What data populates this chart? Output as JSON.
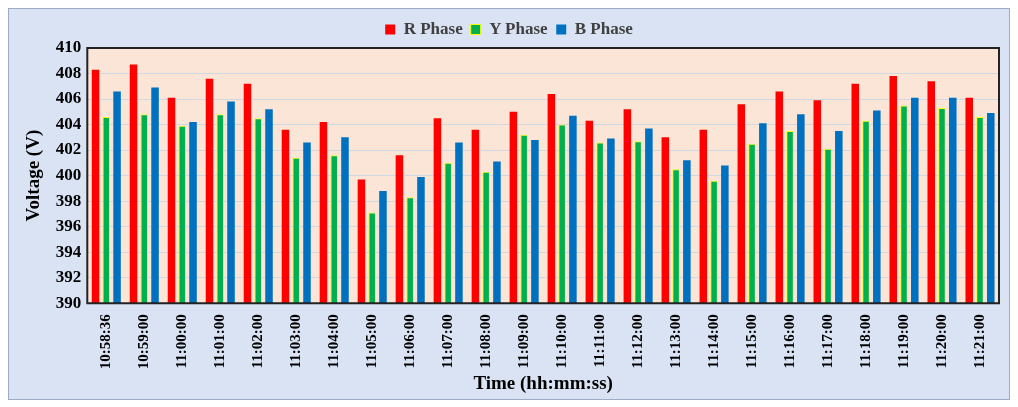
{
  "chart_data": {
    "type": "bar",
    "xlabel": "Time (hh:mm:ss)",
    "ylabel": "Voltage (V)",
    "categories": [
      "10:58:36",
      "10:59:00",
      "11:00:00",
      "11:01:00",
      "11:02:00",
      "11:03:00",
      "11:04:00",
      "11:05:00",
      "11:06:00",
      "11:07:00",
      "11:08:00",
      "11:09:00",
      "11:10:00",
      "11:11:00",
      "11:12:00",
      "11:13:00",
      "11:14:00",
      "11:15:00",
      "11:16:00",
      "11:17:00",
      "11:18:00",
      "11:19:00",
      "11:20:00",
      "11:21:00"
    ],
    "series": [
      {
        "name": "R Phase",
        "color": "#ff0000",
        "values": [
          408.3,
          408.7,
          406.1,
          407.6,
          407.2,
          403.6,
          404.2,
          399.7,
          401.6,
          404.5,
          403.6,
          405.0,
          406.4,
          404.3,
          405.2,
          403.0,
          403.6,
          405.6,
          406.6,
          405.9,
          407.2,
          407.8,
          407.4,
          406.1
        ]
      },
      {
        "name": "Y Phase",
        "color": "#00b050",
        "values": [
          404.6,
          404.8,
          403.9,
          404.8,
          404.5,
          401.4,
          401.6,
          397.1,
          398.3,
          401.0,
          400.3,
          403.2,
          404.0,
          402.6,
          402.7,
          400.5,
          399.6,
          402.5,
          403.5,
          402.1,
          404.3,
          405.5,
          405.3,
          404.6
        ]
      },
      {
        "name": "B Phase",
        "color": "#0070c0",
        "values": [
          406.6,
          406.9,
          404.2,
          405.8,
          405.2,
          402.6,
          403.0,
          398.8,
          399.9,
          402.6,
          401.1,
          402.8,
          404.7,
          402.9,
          403.7,
          401.2,
          400.8,
          404.1,
          404.8,
          403.5,
          405.1,
          406.1,
          406.1,
          404.9
        ]
      }
    ],
    "ylim": [
      390,
      410
    ],
    "yticks": [
      390,
      392,
      394,
      396,
      398,
      400,
      402,
      404,
      406,
      408,
      410
    ],
    "grid": "y",
    "legend": "top"
  }
}
